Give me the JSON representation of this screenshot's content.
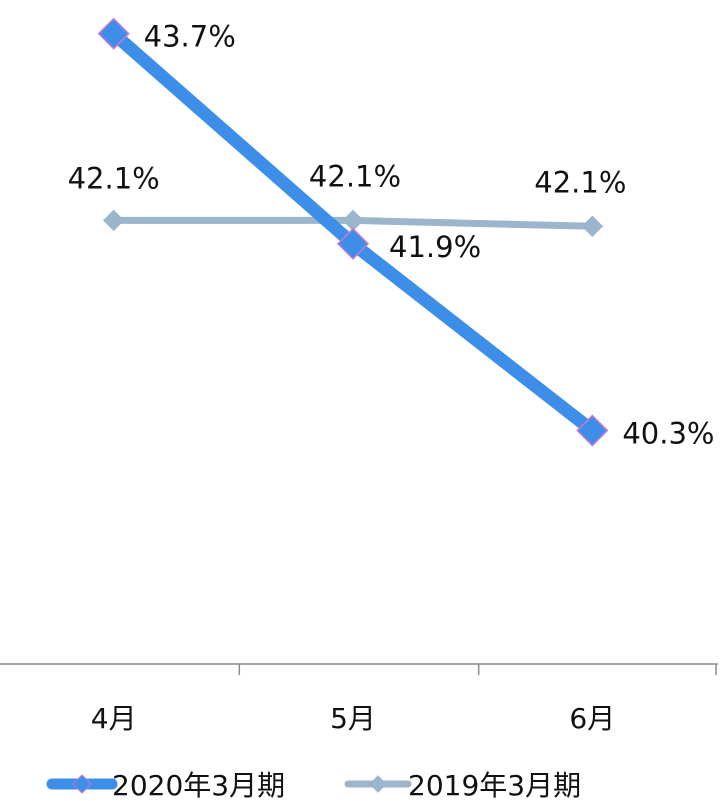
{
  "chart_data": {
    "type": "line",
    "categories": [
      "4月",
      "5月",
      "6月"
    ],
    "series": [
      {
        "name": "2020年3月期",
        "values": [
          43.7,
          41.9,
          40.3
        ],
        "labels": [
          "43.7%",
          "41.9%",
          "40.3%"
        ],
        "color": "#3d8ee8",
        "marker_color": "#3d8ee8",
        "marker_edge": "#c77ad0"
      },
      {
        "name": "2019年3月期",
        "values": [
          42.1,
          42.1,
          42.05
        ],
        "labels": [
          "42.1%",
          "42.1%",
          "42.1%"
        ],
        "color": "#9bb5cc",
        "marker_color": "#9bb5cc",
        "marker_edge": "#9bb5cc"
      }
    ],
    "ylim": [
      38.3,
      43.8
    ],
    "axis_color": "#8a8a8a",
    "grid": false,
    "legend": "bottom",
    "marker": "diamond"
  }
}
